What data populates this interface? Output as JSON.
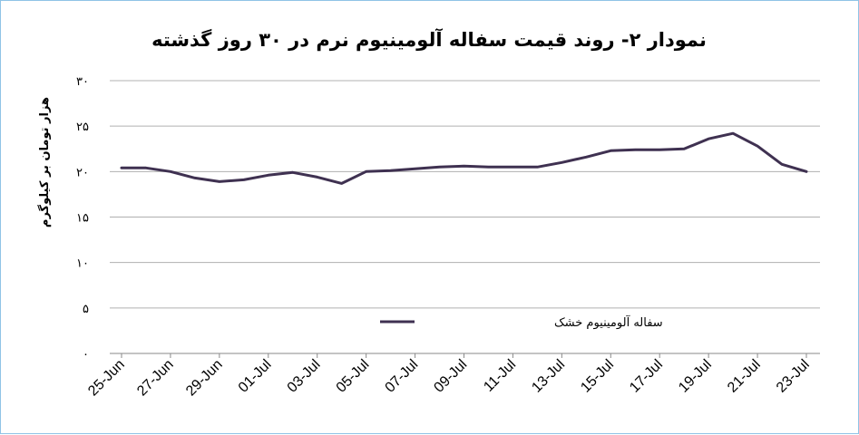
{
  "chart_data": {
    "type": "line",
    "title": "نمودار ۲- روند قیمت سفاله آلومینیوم نرم در ۳۰ روز گذشته",
    "ylabel": "هزار تومان بر کیلوگرم",
    "xlabel": "",
    "ylim": [
      0,
      30
    ],
    "y_ticks": [
      "۰",
      "۵",
      "۱۰",
      "۱۵",
      "۲۰",
      "۲۵",
      "۳۰"
    ],
    "x_tick_labels": [
      "25-Jun",
      "27-Jun",
      "29-Jun",
      "01-Jul",
      "03-Jul",
      "05-Jul",
      "07-Jul",
      "09-Jul",
      "11-Jul",
      "13-Jul",
      "15-Jul",
      "17-Jul",
      "19-Jul",
      "21-Jul",
      "23-Jul"
    ],
    "grid": true,
    "legend": "bottom-center",
    "series": [
      {
        "name": "سفاله آلومینیوم خشک",
        "color": "#3f3151",
        "x": [
          "25-Jun",
          "26-Jun",
          "27-Jun",
          "28-Jun",
          "29-Jun",
          "30-Jun",
          "01-Jul",
          "02-Jul",
          "03-Jul",
          "04-Jul",
          "05-Jul",
          "06-Jul",
          "07-Jul",
          "08-Jul",
          "09-Jul",
          "10-Jul",
          "11-Jul",
          "12-Jul",
          "13-Jul",
          "14-Jul",
          "15-Jul",
          "16-Jul",
          "17-Jul",
          "18-Jul",
          "19-Jul",
          "20-Jul",
          "21-Jul",
          "22-Jul",
          "23-Jul"
        ],
        "values": [
          20.4,
          20.4,
          20.0,
          19.3,
          18.9,
          19.1,
          19.6,
          19.9,
          19.4,
          18.7,
          20.0,
          20.1,
          20.3,
          20.5,
          20.6,
          20.5,
          20.5,
          20.5,
          21.0,
          21.6,
          22.3,
          22.4,
          22.4,
          22.5,
          23.6,
          24.2,
          22.8,
          20.8,
          20.0
        ]
      }
    ]
  }
}
